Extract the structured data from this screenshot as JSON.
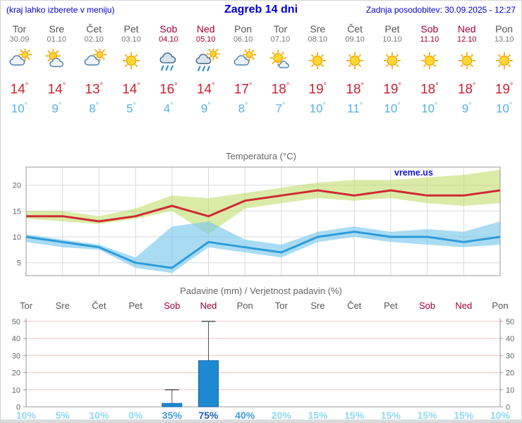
{
  "header": {
    "menu_hint": "(kraj lahko izberete v meniju)",
    "title": "Zagreb 14 dni",
    "last_update": "Zadnja posodobitev: 30.09.2025 - 12:27"
  },
  "units": {
    "degree": "°"
  },
  "colors": {
    "header-blue": "#0000cc",
    "weekend": "#a50034",
    "tmax-red": "#cc2233",
    "tmin-blue": "#55b0e6",
    "grid": "#d9d9d9",
    "border": "#9a9a9a",
    "precip-grid": "#f2c4c4",
    "bar-blue": "#1e88d0",
    "bar-border": "#1565a8",
    "prob-light": "#8ed9f0",
    "prob-medium": "#3f9fd9",
    "prob-dark": "#1a5fb8",
    "watermark-blue": "#1414cc"
  },
  "forecast_days": [
    {
      "name": "Tor",
      "date": "30.09",
      "weekend": false,
      "icon": "mostly-cloudy",
      "tmax": "14",
      "tmin": "10"
    },
    {
      "name": "Sre",
      "date": "01.10",
      "weekend": false,
      "icon": "partly-cloudy",
      "tmax": "14",
      "tmin": "9"
    },
    {
      "name": "Čet",
      "date": "02.10",
      "weekend": false,
      "icon": "mostly-cloudy",
      "tmax": "13",
      "tmin": "8"
    },
    {
      "name": "Pet",
      "date": "03.10",
      "weekend": false,
      "icon": "sunny",
      "tmax": "14",
      "tmin": "5"
    },
    {
      "name": "Sob",
      "date": "04.10",
      "weekend": true,
      "icon": "rain",
      "tmax": "16",
      "tmin": "4"
    },
    {
      "name": "Ned",
      "date": "05.10",
      "weekend": true,
      "icon": "rain-sun",
      "tmax": "14",
      "tmin": "9"
    },
    {
      "name": "Pon",
      "date": "06.10",
      "weekend": false,
      "icon": "mostly-cloudy",
      "tmax": "17",
      "tmin": "8"
    },
    {
      "name": "Tor",
      "date": "07.10",
      "weekend": false,
      "icon": "mostly-sunny",
      "tmax": "18",
      "tmin": "7"
    },
    {
      "name": "Sre",
      "date": "08.10",
      "weekend": false,
      "icon": "sunny",
      "tmax": "19",
      "tmin": "10"
    },
    {
      "name": "Čet",
      "date": "09.10",
      "weekend": false,
      "icon": "sunny",
      "tmax": "18",
      "tmin": "11"
    },
    {
      "name": "Pet",
      "date": "10.10",
      "weekend": false,
      "icon": "sunny",
      "tmax": "19",
      "tmin": "10"
    },
    {
      "name": "Sob",
      "date": "11.10",
      "weekend": true,
      "icon": "sunny",
      "tmax": "18",
      "tmin": "10"
    },
    {
      "name": "Ned",
      "date": "12.10",
      "weekend": true,
      "icon": "sunny",
      "tmax": "18",
      "tmin": "9"
    },
    {
      "name": "Pon",
      "date": "13.10",
      "weekend": false,
      "icon": "sunny",
      "tmax": "19",
      "tmin": "10"
    }
  ],
  "chart_data": [
    {
      "type": "line",
      "title": "Temperatura (°C)",
      "watermark": "vreme.us",
      "yticks": [
        5,
        10,
        15,
        20
      ],
      "ylim": [
        2.5,
        23.5
      ],
      "grid": true,
      "series": [
        {
          "name": "tmax",
          "color": "#cf2a33",
          "values": [
            14,
            14,
            13,
            14,
            16,
            14,
            17,
            18,
            19,
            18,
            19,
            18,
            18,
            19
          ]
        },
        {
          "name": "tmin",
          "color": "#2e9bd8",
          "values": [
            10,
            9,
            8,
            5,
            4,
            9,
            8,
            7,
            10,
            11,
            10,
            10,
            9,
            10
          ]
        }
      ],
      "bands": [
        {
          "name": "tmax-range",
          "color": "rgba(187,219,96,0.55)",
          "lo": [
            13.5,
            13,
            12.5,
            13.5,
            15,
            10.5,
            15.5,
            16.5,
            17.5,
            17,
            17.5,
            16.5,
            16,
            16.5
          ],
          "hi": [
            15,
            15,
            14,
            15.5,
            18,
            17.5,
            18.5,
            19.5,
            20.5,
            21,
            21,
            21.5,
            22,
            23
          ]
        },
        {
          "name": "tmin-range",
          "color": "rgba(116,198,235,0.62)",
          "lo": [
            9,
            8,
            7.5,
            4,
            3,
            8,
            7,
            6,
            9,
            10,
            9,
            8.5,
            8,
            8.5
          ],
          "hi": [
            10.5,
            9.5,
            8.5,
            6,
            12,
            13,
            9.5,
            8.5,
            11,
            12,
            11,
            11.5,
            11,
            13
          ]
        }
      ]
    },
    {
      "type": "bar",
      "title": "Padavine (mm) / Verjetnost padavin (%)",
      "categories": [
        "Tor",
        "Sre",
        "Čet",
        "Pet",
        "Sob",
        "Ned",
        "Pon",
        "Tor",
        "Sre",
        "Čet",
        "Pet",
        "Sob",
        "Ned",
        "Pon"
      ],
      "weekend": [
        false,
        false,
        false,
        false,
        true,
        true,
        false,
        false,
        false,
        false,
        false,
        true,
        true,
        false
      ],
      "values_mm": [
        0,
        0,
        0,
        0,
        2,
        27,
        0,
        0,
        0,
        0,
        0,
        0,
        0,
        0
      ],
      "whisker_hi": [
        0,
        0,
        0,
        0,
        10,
        50,
        0,
        0,
        0,
        0,
        0,
        0,
        0,
        0
      ],
      "yticks": [
        0,
        10,
        20,
        30,
        40,
        50
      ],
      "ylim": [
        0,
        52
      ],
      "probabilities": [
        "10%",
        "5%",
        "10%",
        "0%",
        "35%",
        "75%",
        "40%",
        "20%",
        "15%",
        "15%",
        "15%",
        "15%",
        "15%",
        "10%"
      ],
      "prob_emphasis": [
        0,
        0,
        0,
        0,
        1,
        2,
        1,
        0,
        0,
        0,
        0,
        0,
        0,
        0
      ]
    }
  ]
}
